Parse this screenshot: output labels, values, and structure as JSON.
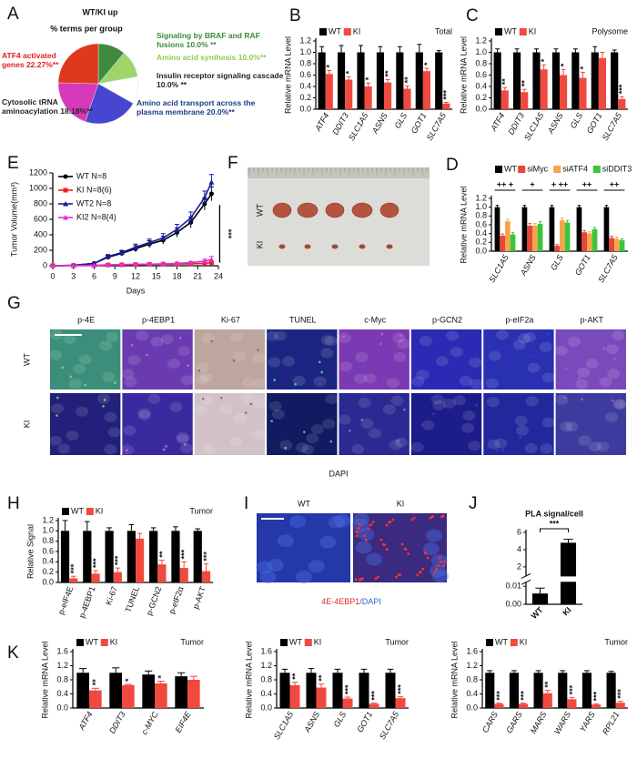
{
  "chart_data": [
    {
      "panel": "A",
      "type": "pie",
      "title": "WT/KI up",
      "subtitle": "% terms per group",
      "categories": [
        "Signaling by BRAF and RAF fusions",
        "Amino acid synthesis",
        "Insulin receptor signaling cascade",
        "Amino acid transport across the plasma membrane",
        "Cytosolic tRNA aminoacylation",
        "ATF4 activated genes"
      ],
      "values": [
        10.0,
        10.0,
        10.0,
        20.0,
        18.18,
        22.27
      ],
      "value_labels": [
        "10.0% **",
        "10.0%**",
        "10.0% **",
        "20.0%**",
        "18.18%**",
        "22.27%**"
      ],
      "colors": [
        "#3e8a3e",
        "#9ed46a",
        "#ffffff",
        "#4646d0",
        "#d63ab8",
        "#e0381a"
      ],
      "label_colors": [
        "#3a8a3a",
        "#8ccc50",
        "#222222",
        "#1a3a8a",
        "#222222",
        "#e02020"
      ]
    },
    {
      "panel": "B",
      "type": "bar",
      "subtitle": "Total",
      "ylabel": "Relative mRNA Level",
      "categories": [
        "ATF4",
        "DDIT3",
        "SLC1A5",
        "ASNS",
        "GLS",
        "GOT1",
        "SLC7A5"
      ],
      "series": [
        {
          "name": "WT",
          "color": "#000000",
          "values": [
            1.0,
            1.0,
            1.0,
            1.0,
            1.0,
            1.0,
            1.0
          ],
          "errors": [
            0.1,
            0.12,
            0.12,
            0.1,
            0.1,
            0.14,
            0.03
          ]
        },
        {
          "name": "KI",
          "color": "#f04a40",
          "values": [
            0.62,
            0.52,
            0.4,
            0.47,
            0.36,
            0.67,
            0.1
          ],
          "errors": [
            0.06,
            0.05,
            0.06,
            0.05,
            0.05,
            0.05,
            0.02
          ]
        }
      ],
      "significance": [
        "*",
        "*",
        "*",
        "**",
        "**",
        "*",
        "***"
      ],
      "ylim": [
        0,
        1.2
      ],
      "yticks": [
        {
          "value": 0,
          "label": "0.0"
        },
        0.2,
        0.4,
        0.6,
        0.8,
        {
          "value": 1,
          "label": "1.0"
        },
        1.2
      ]
    },
    {
      "panel": "C",
      "type": "bar",
      "subtitle": "Polysome",
      "ylabel": "Relative mRNA Level",
      "categories": [
        "ATF4",
        "DDIT3",
        "SLC1A5",
        "ASNS",
        "GLS",
        "GOT1",
        "SLC7A5"
      ],
      "series": [
        {
          "name": "WT",
          "color": "#000000",
          "values": [
            1.0,
            1.0,
            1.0,
            1.0,
            1.0,
            1.0,
            1.0
          ],
          "errors": [
            0.06,
            0.06,
            0.06,
            0.06,
            0.06,
            0.1,
            0.04
          ]
        },
        {
          "name": "KI",
          "color": "#f04a40",
          "values": [
            0.33,
            0.3,
            0.7,
            0.6,
            0.55,
            0.9,
            0.18
          ],
          "errors": [
            0.05,
            0.05,
            0.08,
            0.1,
            0.1,
            0.1,
            0.04
          ]
        }
      ],
      "significance": [
        "**",
        "**",
        "*",
        "*",
        "*",
        null,
        "***"
      ],
      "ylim": [
        0,
        1.2
      ],
      "yticks": [
        {
          "value": 0,
          "label": "0.0"
        },
        0.2,
        0.4,
        0.6,
        0.8,
        {
          "value": 1,
          "label": "1.0"
        },
        1.2
      ]
    },
    {
      "panel": "E",
      "type": "line",
      "xlabel": "Days",
      "ylabel": "Tumor Volume(mm³)",
      "x": [
        0,
        3,
        6,
        8,
        10,
        12,
        14,
        16,
        18,
        20,
        22,
        23
      ],
      "series": [
        {
          "name": "WT N=8",
          "color": "#000000",
          "marker": "circle",
          "values": [
            0,
            5,
            30,
            110,
            160,
            220,
            280,
            330,
            430,
            560,
            800,
            930
          ],
          "errors": [
            0,
            3,
            10,
            25,
            30,
            40,
            45,
            50,
            60,
            70,
            80,
            90
          ]
        },
        {
          "name": "KI N=8(6)",
          "color": "#ee2020",
          "marker": "square",
          "values": [
            0,
            2,
            5,
            10,
            12,
            15,
            18,
            20,
            22,
            25,
            30,
            40
          ],
          "errors": [
            0,
            1,
            2,
            3,
            4,
            5,
            5,
            6,
            8,
            10,
            15,
            20
          ]
        },
        {
          "name": "WT2 N=8",
          "color": "#1a1aa8",
          "marker": "triangle",
          "values": [
            0,
            5,
            30,
            120,
            170,
            240,
            300,
            360,
            470,
            620,
            880,
            1080
          ],
          "errors": [
            0,
            3,
            10,
            25,
            30,
            40,
            45,
            55,
            65,
            75,
            85,
            100
          ]
        },
        {
          "name": "KI2 N=8(4)",
          "color": "#e030d0",
          "marker": "triangle",
          "values": [
            0,
            2,
            5,
            12,
            15,
            18,
            20,
            25,
            30,
            40,
            60,
            80
          ],
          "errors": [
            0,
            1,
            2,
            3,
            4,
            5,
            6,
            8,
            10,
            15,
            25,
            40
          ]
        }
      ],
      "annotation": "***",
      "xlim": [
        0,
        24
      ],
      "xticks": [
        0,
        3,
        6,
        9,
        12,
        15,
        18,
        21,
        24
      ],
      "ylim": [
        0,
        1200
      ],
      "yticks": [
        0,
        200,
        400,
        600,
        800,
        1000,
        1200
      ]
    },
    {
      "panel": "D",
      "type": "bar",
      "ylabel": "Relative mRNA Level",
      "categories": [
        "SLC1A5",
        "ASNS",
        "GLS",
        "GOT1",
        "SLC7A5"
      ],
      "series": [
        {
          "name": "WT",
          "color": "#000000",
          "values": [
            1.0,
            1.0,
            1.0,
            1.0,
            1.0
          ],
          "errors": [
            0.04,
            0.04,
            0.04,
            0.04,
            0.04
          ]
        },
        {
          "name": "siMyc",
          "color": "#e8443c",
          "values": [
            0.35,
            0.58,
            0.12,
            0.43,
            0.3
          ],
          "errors": [
            0.04,
            0.05,
            0.03,
            0.04,
            0.04
          ]
        },
        {
          "name": "siATF4",
          "color": "#f5a54a",
          "values": [
            0.68,
            0.58,
            0.7,
            0.4,
            0.28
          ],
          "errors": [
            0.05,
            0.05,
            0.05,
            0.04,
            0.04
          ]
        },
        {
          "name": "siDDIT3",
          "color": "#3cc43c",
          "values": [
            0.38,
            0.62,
            0.65,
            0.5,
            0.25
          ],
          "errors": [
            0.04,
            0.05,
            0.05,
            0.04,
            0.03
          ]
        }
      ],
      "annotations": [
        "++ +",
        "+",
        "+ ++",
        "++",
        "++"
      ],
      "ylim": [
        0,
        1.2
      ],
      "yticks": [
        {
          "value": 0,
          "label": "0.0"
        },
        0.2,
        0.4,
        0.6,
        0.8,
        {
          "value": 1,
          "label": "1.0"
        },
        1.2
      ]
    },
    {
      "panel": "H",
      "type": "bar",
      "subtitle": "Tumor",
      "ylabel": "Relative Signal",
      "categories": [
        "p-eIF4E",
        "p-4EBP1",
        "Ki-67",
        "TUNEL",
        "p-GCN2",
        "p-eIF2α",
        "p-AKT"
      ],
      "series": [
        {
          "name": "WT",
          "color": "#000000",
          "values": [
            1.0,
            1.0,
            1.0,
            1.0,
            1.0,
            1.0,
            1.0
          ],
          "errors": [
            0.2,
            0.18,
            0.06,
            0.12,
            0.06,
            0.08,
            0.04
          ]
        },
        {
          "name": "KI",
          "color": "#f04a40",
          "values": [
            0.08,
            0.17,
            0.2,
            0.85,
            0.35,
            0.28,
            0.22
          ],
          "errors": [
            0.04,
            0.06,
            0.08,
            0.1,
            0.08,
            0.12,
            0.14
          ]
        }
      ],
      "significance": [
        "***",
        "***",
        "***",
        null,
        "**",
        "***",
        "***"
      ],
      "ylim": [
        0,
        1.2
      ],
      "yticks": [
        {
          "value": 0,
          "label": "0.0"
        },
        0.2,
        0.4,
        0.6,
        0.8,
        {
          "value": 1,
          "label": "1.0"
        },
        1.2
      ]
    },
    {
      "panel": "J",
      "type": "bar",
      "title": "PLA signal/cell",
      "categories": [
        "WT",
        "KI"
      ],
      "values": [
        0.006,
        4.8
      ],
      "errors": [
        0.003,
        0.4
      ],
      "color": "#000000",
      "annotation": "***",
      "ylim": [
        0,
        6
      ],
      "ybreak": [
        0.012,
        1
      ],
      "yticks": [
        {
          "value": 0,
          "label": "0.00"
        },
        0.01,
        2,
        4,
        6
      ]
    },
    {
      "panel": "K",
      "type": "bar",
      "subtitle": "Tumor",
      "ylabel": "Relative mRNA Level",
      "categories": [
        "ATF4",
        "DDIT3",
        "c-MYC",
        "EIF4E"
      ],
      "series": [
        {
          "name": "WT",
          "color": "#000000",
          "values": [
            1.0,
            1.0,
            0.95,
            0.9
          ],
          "errors": [
            0.12,
            0.14,
            0.1,
            0.1
          ]
        },
        {
          "name": "KI",
          "color": "#f04a40",
          "values": [
            0.5,
            0.65,
            0.7,
            0.8
          ],
          "errors": [
            0.06,
            0.02,
            0.06,
            0.1
          ]
        }
      ],
      "significance": [
        "**",
        "*",
        "*",
        null
      ],
      "ylim": [
        0,
        1.6
      ],
      "yticks": [
        {
          "value": 0,
          "label": "0.0"
        },
        0.4,
        0.8,
        1.2,
        1.6
      ]
    },
    {
      "type": "bar",
      "subtitle": "Tumor",
      "ylabel": "Relative mRNA Level",
      "categories": [
        "SLC1A5",
        "ASNS",
        "GLS",
        "GOT1",
        "SLC7A5"
      ],
      "series": [
        {
          "name": "WT",
          "color": "#000000",
          "values": [
            1.0,
            1.0,
            1.0,
            1.0,
            1.0
          ],
          "errors": [
            0.1,
            0.12,
            0.1,
            0.1,
            0.1
          ]
        },
        {
          "name": "KI",
          "color": "#f04a40",
          "values": [
            0.65,
            0.58,
            0.27,
            0.12,
            0.28
          ],
          "errors": [
            0.08,
            0.1,
            0.04,
            0.02,
            0.04
          ]
        }
      ],
      "significance": [
        "**",
        "**",
        "***",
        "***",
        "***"
      ],
      "ylim": [
        0,
        1.6
      ],
      "yticks": [
        {
          "value": 0,
          "label": "0.0"
        },
        0.4,
        0.8,
        1.2,
        1.6
      ]
    },
    {
      "type": "bar",
      "subtitle": "Tumor",
      "ylabel": "Relative mRNA Level",
      "categories": [
        "CARS",
        "GARS",
        "MARS",
        "WARS",
        "YARS",
        "RPL21"
      ],
      "series": [
        {
          "name": "WT",
          "color": "#000000",
          "values": [
            1.0,
            1.0,
            1.0,
            1.0,
            1.0,
            1.0
          ],
          "errors": [
            0.06,
            0.06,
            0.06,
            0.06,
            0.06,
            0.04
          ]
        },
        {
          "name": "KI",
          "color": "#f04a40",
          "values": [
            0.12,
            0.12,
            0.42,
            0.25,
            0.1,
            0.15
          ],
          "errors": [
            0.02,
            0.02,
            0.08,
            0.05,
            0.02,
            0.04
          ]
        }
      ],
      "significance": [
        "***",
        "***",
        "**",
        "***",
        "***",
        "***"
      ],
      "ylim": [
        0,
        1.6
      ],
      "yticks": [
        {
          "value": 0,
          "label": "0.0"
        },
        0.4,
        0.8,
        1.2,
        1.6
      ]
    }
  ],
  "images": {
    "F": {
      "panel": "F",
      "rows": [
        "WT",
        "KI"
      ]
    },
    "G": {
      "panel": "G",
      "columns": [
        {
          "label": "p-4E",
          "color": "#22bb44"
        },
        {
          "label": "p-4EBP1",
          "color": "#e02a2a"
        },
        {
          "label": "Ki-67",
          "color": "#9a6a3a"
        },
        {
          "label": "TUNEL",
          "color": "#22bb44"
        },
        {
          "label": "c-Myc",
          "color": "#e02a2a"
        },
        {
          "label": "p-GCN2",
          "color": "#e02a2a"
        },
        {
          "label": "p-eIF2a",
          "color": "#e02a2a"
        },
        {
          "label": "p-AKT",
          "color": "#e02a2a"
        }
      ],
      "rows": [
        "WT",
        "KI"
      ],
      "caption": "DAPI"
    },
    "I": {
      "panel": "I",
      "columns": [
        "WT",
        "KI"
      ],
      "caption": [
        "4E-4EBP1",
        "/DAPI"
      ]
    }
  }
}
